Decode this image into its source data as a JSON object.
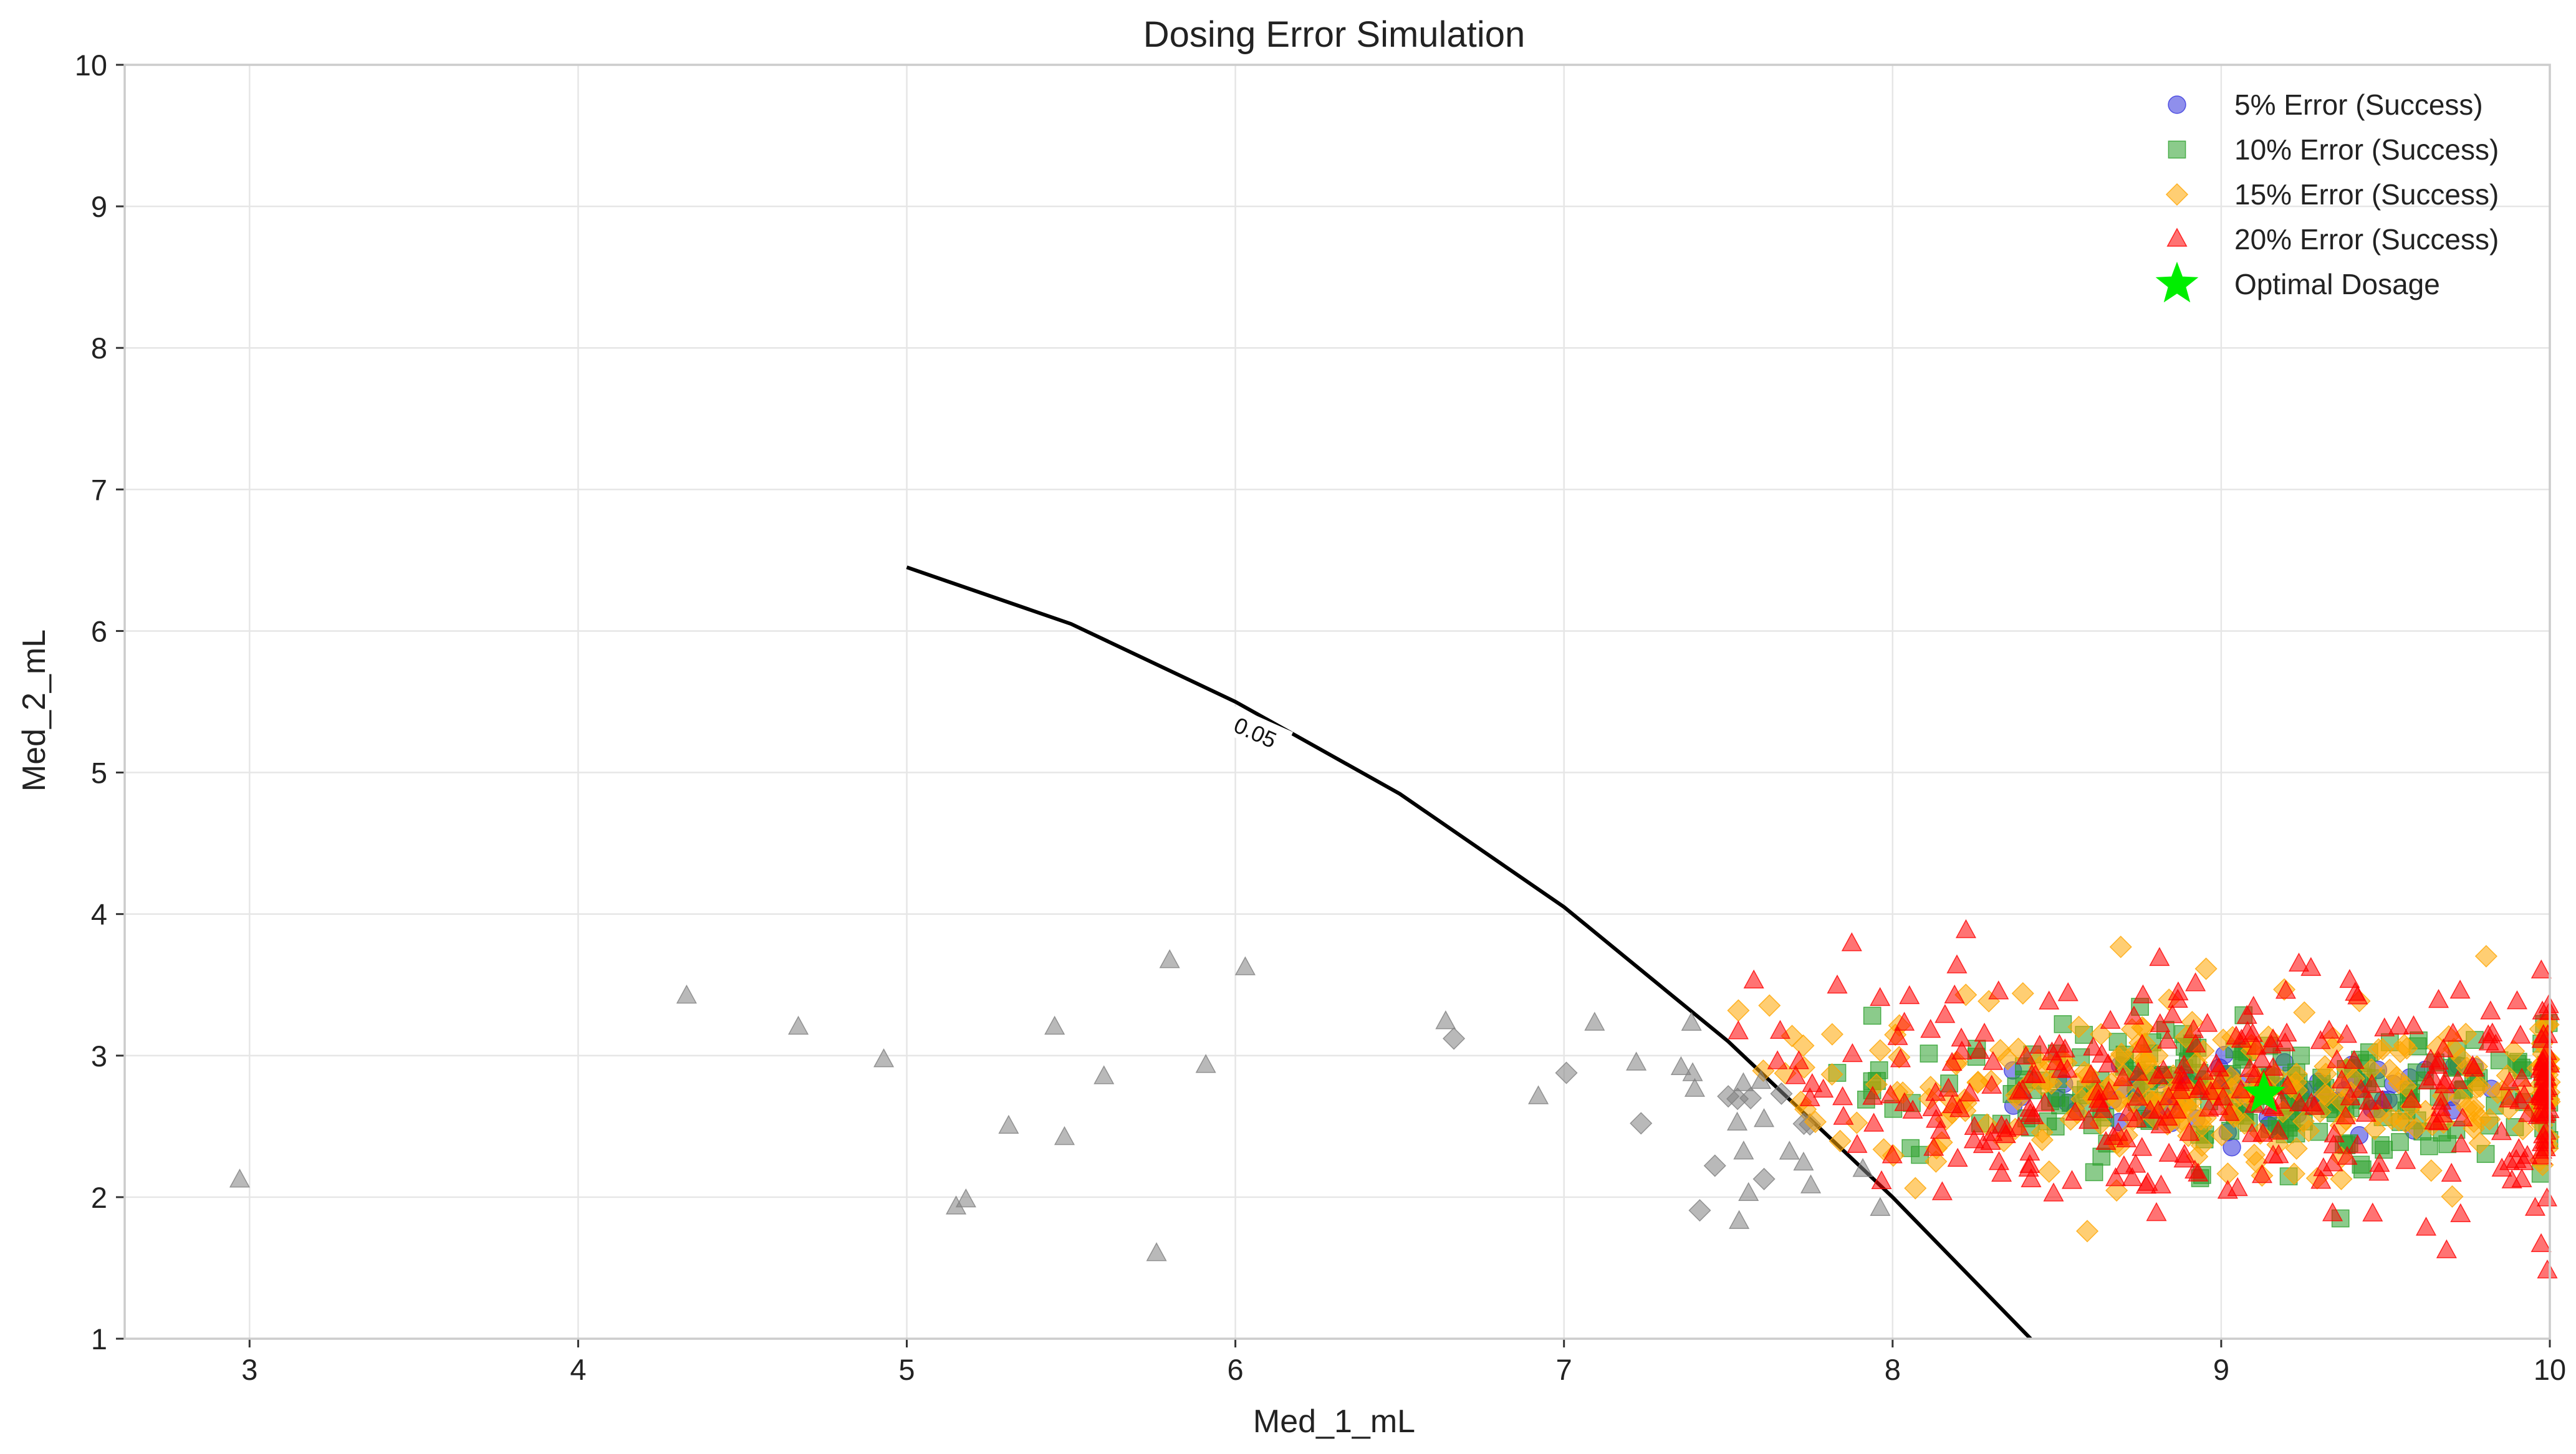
{
  "chart_data": {
    "type": "scatter",
    "title": "Dosing Error Simulation",
    "xlabel": "Med_1_mL",
    "ylabel": "Med_2_mL",
    "xlim": [
      2.62,
      10
    ],
    "ylim": [
      1,
      10
    ],
    "xticks": [
      "3",
      "4",
      "5",
      "6",
      "7",
      "8",
      "9",
      "10"
    ],
    "yticks": [
      "1",
      "2",
      "3",
      "4",
      "5",
      "6",
      "7",
      "8",
      "9",
      "10"
    ],
    "grid": true,
    "legend_position": "top-right",
    "series": [
      {
        "name": "5% Error (Success)",
        "marker": "circle",
        "color": "#3333dd",
        "center": [
          9.15,
          2.72
        ],
        "spread": [
          0.38,
          0.14
        ],
        "count": 70
      },
      {
        "name": "10% Error (Success)",
        "marker": "square",
        "color": "#2ca02c",
        "center": [
          9.1,
          2.72
        ],
        "spread": [
          0.55,
          0.25
        ],
        "count": 220
      },
      {
        "name": "15% Error (Success)",
        "marker": "diamond",
        "color": "#ffa500",
        "center": [
          9.0,
          2.72
        ],
        "spread": [
          0.7,
          0.32
        ],
        "count": 300
      },
      {
        "name": "20% Error (Success)",
        "marker": "triangle",
        "color": "#ff0000",
        "center": [
          9.0,
          2.72
        ],
        "spread": [
          0.85,
          0.42
        ],
        "count": 340
      },
      {
        "name": "Optimal Dosage",
        "marker": "star",
        "color": "#00ee00",
        "x": 9.13,
        "y": 2.73
      }
    ],
    "failed_points_color": "#808080",
    "contour": {
      "level_label": "0.05",
      "points": [
        [
          5.0,
          6.45
        ],
        [
          5.5,
          6.05
        ],
        [
          6.0,
          5.5
        ],
        [
          6.5,
          4.85
        ],
        [
          7.0,
          4.05
        ],
        [
          7.5,
          3.1
        ],
        [
          8.0,
          2.0
        ],
        [
          8.42,
          1.0
        ]
      ]
    }
  }
}
